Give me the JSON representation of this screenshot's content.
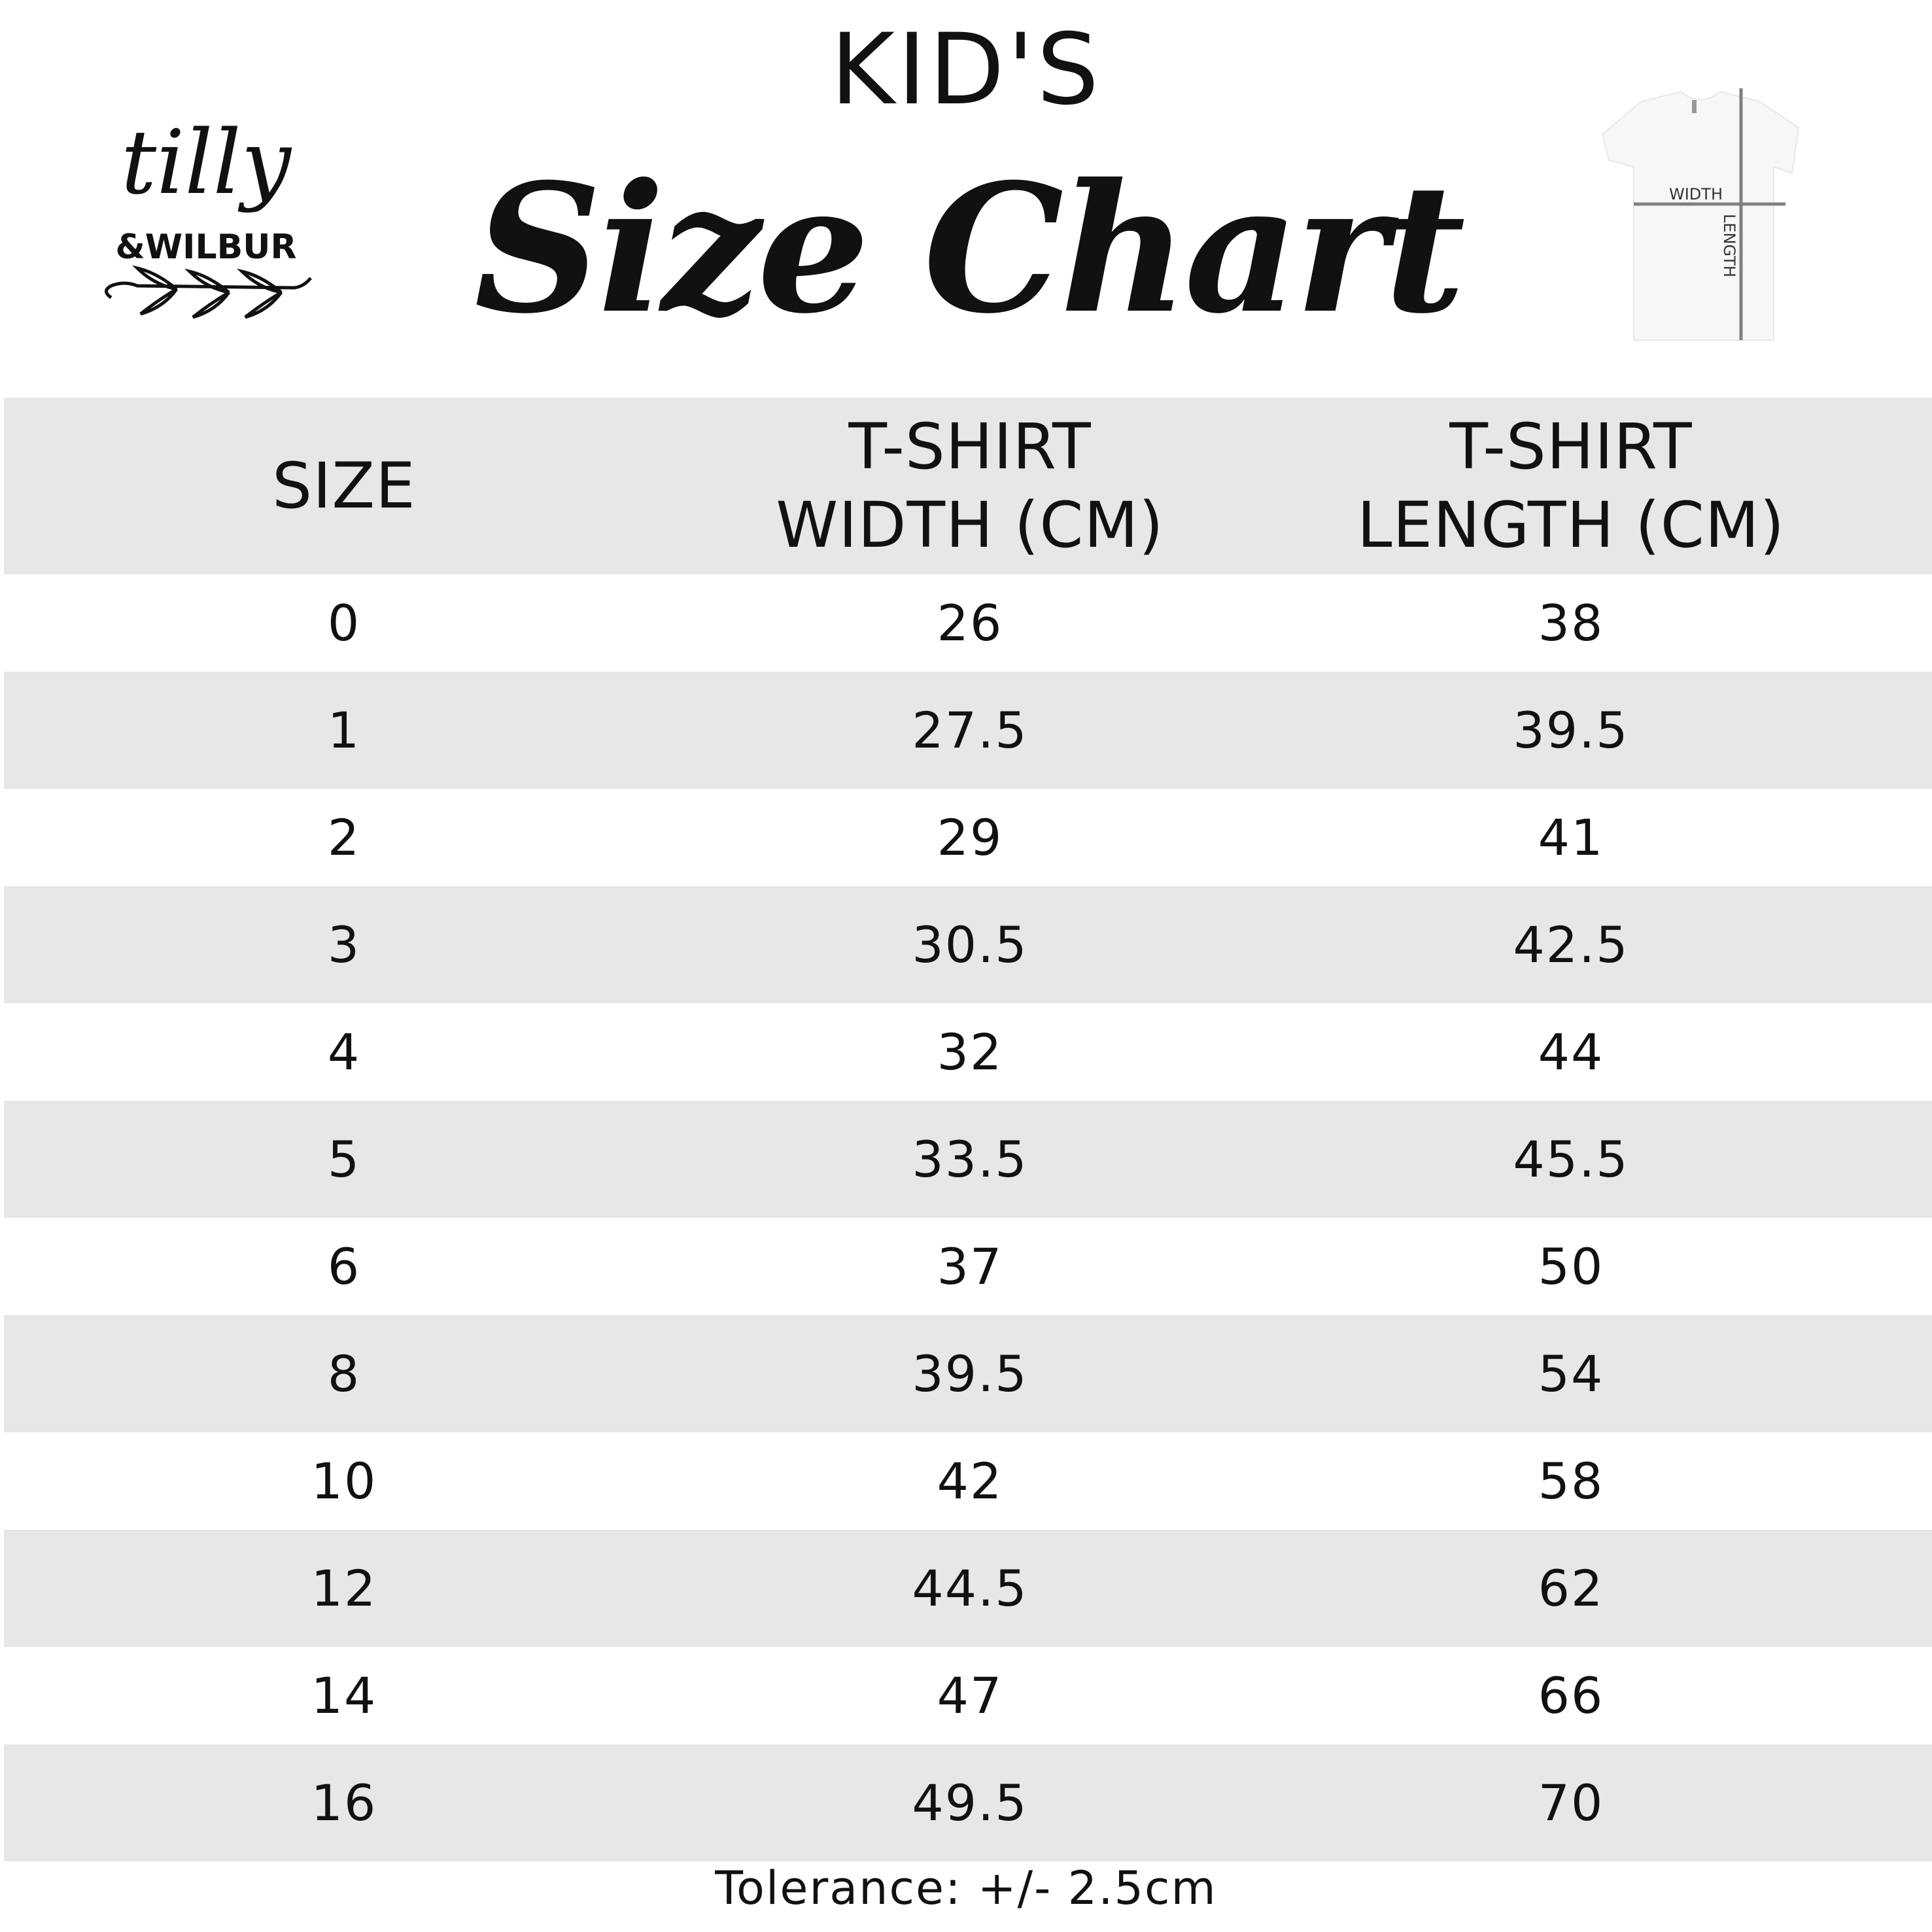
{
  "brand": {
    "logo_text": "tilly & WILBUR"
  },
  "header": {
    "kicker": "KID'S",
    "title": "Size Chart"
  },
  "diagram": {
    "width_label": "WIDTH",
    "length_label": "LENGTH"
  },
  "table": {
    "columns": [
      "SIZE",
      "T-SHIRT\nWIDTH (CM)",
      "T-SHIRT\nLENGTH (CM)"
    ],
    "rows": [
      [
        "0",
        "26",
        "38"
      ],
      [
        "1",
        "27.5",
        "39.5"
      ],
      [
        "2",
        "29",
        "41"
      ],
      [
        "3",
        "30.5",
        "42.5"
      ],
      [
        "4",
        "32",
        "44"
      ],
      [
        "5",
        "33.5",
        "45.5"
      ],
      [
        "6",
        "37",
        "50"
      ],
      [
        "8",
        "39.5",
        "54"
      ],
      [
        "10",
        "42",
        "58"
      ],
      [
        "12",
        "44.5",
        "62"
      ],
      [
        "14",
        "47",
        "66"
      ],
      [
        "16",
        "49.5",
        "70"
      ]
    ]
  },
  "footer": {
    "tolerance": "Tolerance: +/- 2.5cm"
  },
  "colors": {
    "row_alt": "#e6e7e9",
    "text": "#111111",
    "measure_line": "#808080"
  }
}
